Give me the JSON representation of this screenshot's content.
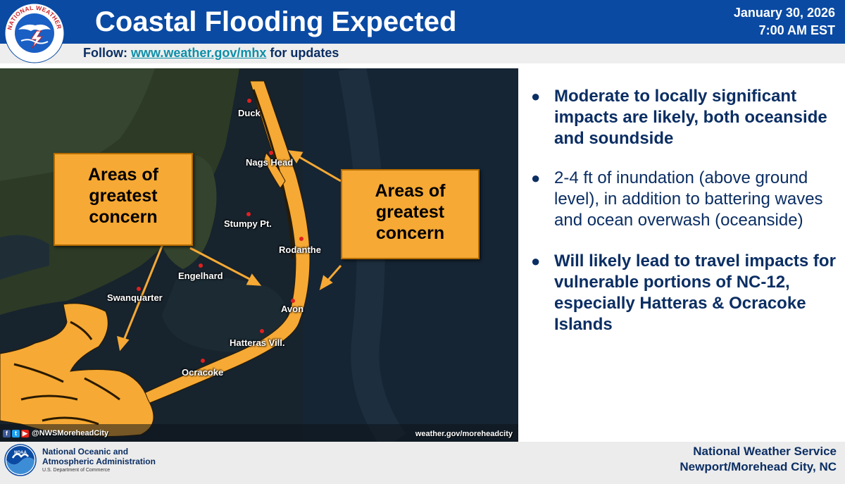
{
  "header": {
    "title": "Coastal Flooding Expected",
    "date": "January 30, 2026",
    "time": "7:00 AM EST",
    "follow_prefix": "Follow: ",
    "follow_link": "www.weather.gov/mhx",
    "follow_suffix": " for updates",
    "logo_text": "NATIONAL WEATHER SERVICE"
  },
  "map": {
    "towns": [
      "Duck",
      "Nags Head",
      "Stumpy Pt.",
      "Rodanthe",
      "Engelhard",
      "Swanquarter",
      "Avon",
      "Hatteras Vill.",
      "Ocracoke"
    ],
    "concern_left": [
      "Areas of",
      "greatest",
      "concern"
    ],
    "concern_right": [
      "Areas of",
      "greatest",
      "concern"
    ],
    "social_handle": "@NWSMoreheadCity",
    "site": "weather.gov/moreheadcity",
    "social_icons": [
      "facebook-icon",
      "twitter-icon",
      "youtube-icon"
    ]
  },
  "bullets": [
    "Moderate to locally significant impacts are likely, both oceanside and soundside",
    "2-4 ft of inundation (above ground level), in addition to battering waves and ocean overwash (oceanside)",
    "Will likely lead to travel impacts for vulnerable portions of NC-12, especially Hatteras & Ocracoke Islands"
  ],
  "footer": {
    "noaa_line1": "National Oceanic and",
    "noaa_line2": "Atmospheric Administration",
    "noaa_line3": "U.S. Department of Commerce",
    "noaa_logo": "NOAA",
    "nws_line1": "National Weather Service",
    "nws_line2": "Newport/Morehead City, NC"
  },
  "colors": {
    "header_blue": "#0a4aa3",
    "text_navy": "#0b2e63",
    "concern_orange": "#f6a934",
    "link_teal": "#0e8fa8"
  }
}
